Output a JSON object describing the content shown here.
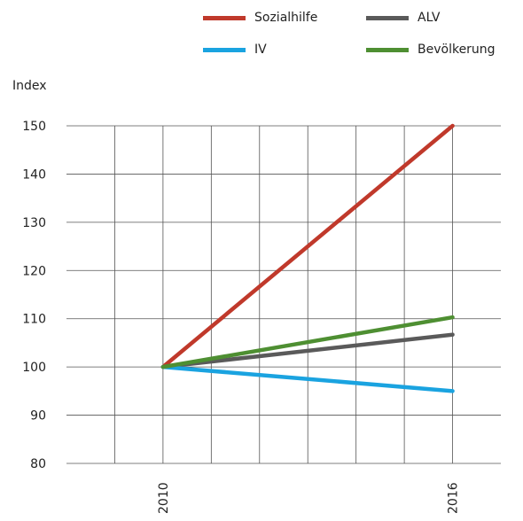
{
  "chart_data": {
    "type": "line",
    "title": "",
    "xlabel": "",
    "ylabel": "Index",
    "x": [
      "2010",
      "2016"
    ],
    "xlim": [
      2008,
      2017
    ],
    "ylim": [
      80,
      150
    ],
    "yticks": [
      80,
      90,
      100,
      110,
      120,
      130,
      140,
      150
    ],
    "xtick_labels": [
      "2010",
      "2016"
    ],
    "grid": true,
    "legend_position": "top",
    "series": [
      {
        "name": "Sozialhilfe",
        "color": "#c0392b",
        "values": [
          100,
          150
        ]
      },
      {
        "name": "ALV",
        "color": "#5a5a5a",
        "values": [
          100,
          106.7
        ]
      },
      {
        "name": "IV",
        "color": "#1aa3e0",
        "values": [
          100,
          95
        ]
      },
      {
        "name": "Bevölkerung",
        "color": "#4e8f32",
        "values": [
          100,
          110.3
        ]
      }
    ]
  }
}
